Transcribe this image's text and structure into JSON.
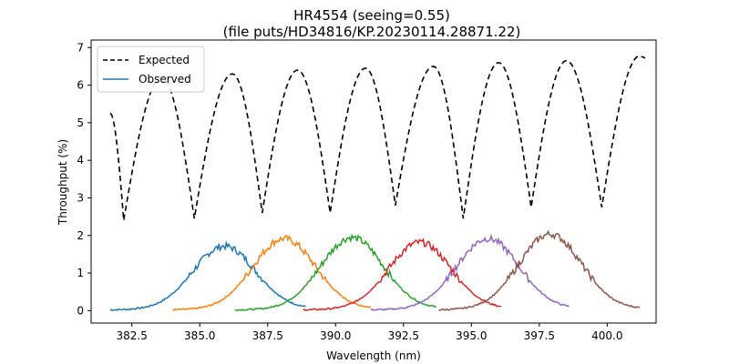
{
  "chart_data": {
    "type": "line",
    "title": "HR4554 (seeing=0.55)",
    "subtitle": "(file puts/HD34816/KP.20230114.28871.22)",
    "xlabel": "Wavelength (nm)",
    "ylabel": "Throughput (%)",
    "xlim": [
      381.0,
      401.8
    ],
    "ylim": [
      -0.33,
      7.2
    ],
    "x_ticks": [
      382.5,
      385.0,
      387.5,
      390.0,
      392.5,
      395.0,
      397.5,
      400.0
    ],
    "x_tick_labels": [
      "382.5",
      "385.0",
      "387.5",
      "390.0",
      "392.5",
      "395.0",
      "397.5",
      "400.0"
    ],
    "y_ticks": [
      0,
      1,
      2,
      3,
      4,
      5,
      6,
      7
    ],
    "y_tick_labels": [
      "0",
      "1",
      "2",
      "3",
      "4",
      "5",
      "6",
      "7"
    ],
    "legend": {
      "position": "upper-left",
      "entries": [
        {
          "label": "Expected",
          "style": "dashed",
          "color": "#000000"
        },
        {
          "label": "Observed",
          "style": "solid",
          "color": "#1f77b4"
        }
      ]
    },
    "expected_series": {
      "name": "Expected",
      "color": "#000000",
      "style": "dashed",
      "peaks": [
        {
          "x": 383.6,
          "y": 6.2
        },
        {
          "x": 386.2,
          "y": 6.3
        },
        {
          "x": 388.6,
          "y": 6.4
        },
        {
          "x": 391.1,
          "y": 6.45
        },
        {
          "x": 393.6,
          "y": 6.5
        },
        {
          "x": 396.0,
          "y": 6.6
        },
        {
          "x": 398.5,
          "y": 6.65
        },
        {
          "x": 401.2,
          "y": 6.78
        }
      ],
      "minima": [
        {
          "x": 382.2,
          "y": 2.4
        },
        {
          "x": 384.8,
          "y": 2.45
        },
        {
          "x": 387.3,
          "y": 2.6
        },
        {
          "x": 389.8,
          "y": 2.6
        },
        {
          "x": 392.2,
          "y": 2.8
        },
        {
          "x": 394.7,
          "y": 2.45
        },
        {
          "x": 397.2,
          "y": 2.75
        },
        {
          "x": 399.8,
          "y": 2.75
        }
      ],
      "start": {
        "x": 381.7,
        "y": 5.25
      },
      "end": {
        "x": 401.4,
        "y": 6.72
      }
    },
    "observed_series": [
      {
        "color": "#1f77b4",
        "x_start": 381.7,
        "x_end": 388.9,
        "peak_x": 385.9,
        "peak_y": 1.7
      },
      {
        "color": "#ff7f0e",
        "x_start": 384.0,
        "x_end": 391.3,
        "peak_x": 388.1,
        "peak_y": 1.9
      },
      {
        "color": "#2ca02c",
        "x_start": 386.3,
        "x_end": 393.7,
        "peak_x": 390.6,
        "peak_y": 1.93
      },
      {
        "color": "#d62728",
        "x_start": 388.8,
        "x_end": 396.1,
        "peak_x": 393.1,
        "peak_y": 1.8
      },
      {
        "color": "#9467bd",
        "x_start": 391.3,
        "x_end": 398.6,
        "peak_x": 395.6,
        "peak_y": 1.9
      },
      {
        "color": "#8c564b",
        "x_start": 393.8,
        "x_end": 401.2,
        "peak_x": 397.9,
        "peak_y": 2.02
      }
    ]
  }
}
